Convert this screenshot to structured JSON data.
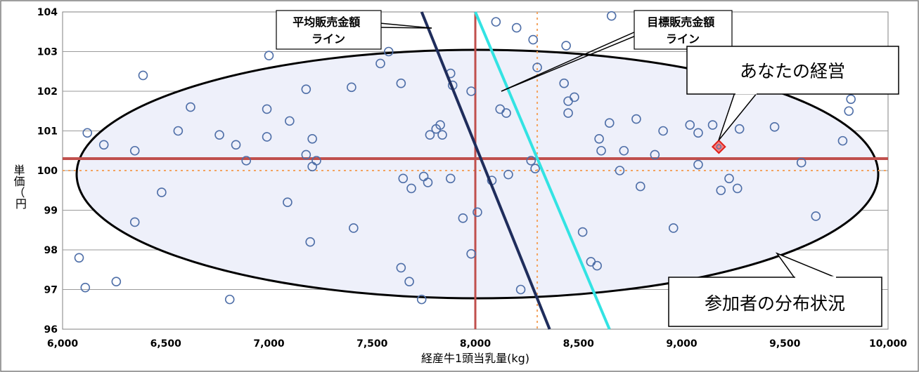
{
  "chart_data": {
    "type": "scatter",
    "title": "",
    "xlabel": "経産牛1頭当乳量(kg)",
    "ylabel": "単価（円）",
    "xlim": [
      6000,
      10000
    ],
    "ylim": [
      96,
      104
    ],
    "x_ticks": [
      "6,000",
      "6,500",
      "7,000",
      "7,500",
      "8,000",
      "8,500",
      "9,000",
      "9,500",
      "10,000"
    ],
    "y_ticks": [
      "96",
      "97",
      "98",
      "99",
      "100",
      "101",
      "102",
      "103",
      "104"
    ],
    "grid": "horizontal",
    "average_x": 8000,
    "average_y": 100.3,
    "target_x": 8300,
    "target_y": 100.0,
    "average_sales_line": {
      "label": "平均販売金額\nライン",
      "points": [
        [
          7740,
          104
        ],
        [
          8360,
          96
        ]
      ]
    },
    "target_sales_line": {
      "label": "目標販売金額\nライン",
      "points": [
        [
          8000,
          104
        ],
        [
          8650,
          96
        ]
      ]
    },
    "your_farm": {
      "label": "あなたの経営",
      "x": 9180,
      "y": 100.6
    },
    "participants": {
      "label": "参加者の分布状況",
      "points": [
        [
          6080,
          97.8
        ],
        [
          6110,
          97.05
        ],
        [
          6120,
          100.95
        ],
        [
          6200,
          100.65
        ],
        [
          6260,
          97.2
        ],
        [
          6350,
          100.5
        ],
        [
          6350,
          98.7
        ],
        [
          6390,
          102.4
        ],
        [
          6480,
          99.45
        ],
        [
          6560,
          101.0
        ],
        [
          6620,
          101.6
        ],
        [
          6760,
          100.9
        ],
        [
          6810,
          96.75
        ],
        [
          6840,
          100.65
        ],
        [
          6890,
          100.25
        ],
        [
          6990,
          101.55
        ],
        [
          6990,
          100.85
        ],
        [
          7000,
          102.9
        ],
        [
          7090,
          99.2
        ],
        [
          7100,
          101.25
        ],
        [
          7180,
          102.05
        ],
        [
          7180,
          100.4
        ],
        [
          7200,
          98.2
        ],
        [
          7210,
          100.8
        ],
        [
          7210,
          100.1
        ],
        [
          7230,
          100.25
        ],
        [
          7400,
          102.1
        ],
        [
          7410,
          98.55
        ],
        [
          7540,
          102.7
        ],
        [
          7580,
          103.0
        ],
        [
          7640,
          102.2
        ],
        [
          7640,
          97.55
        ],
        [
          7650,
          99.8
        ],
        [
          7680,
          97.2
        ],
        [
          7690,
          99.55
        ],
        [
          7740,
          96.75
        ],
        [
          7750,
          99.85
        ],
        [
          7770,
          99.7
        ],
        [
          7780,
          100.9
        ],
        [
          7810,
          101.05
        ],
        [
          7830,
          101.15
        ],
        [
          7840,
          100.9
        ],
        [
          7880,
          102.45
        ],
        [
          7880,
          99.8
        ],
        [
          7890,
          102.15
        ],
        [
          7940,
          98.8
        ],
        [
          7980,
          102.0
        ],
        [
          7980,
          97.9
        ],
        [
          8010,
          98.95
        ],
        [
          8080,
          99.75
        ],
        [
          8100,
          103.75
        ],
        [
          8120,
          101.55
        ],
        [
          8150,
          101.45
        ],
        [
          8160,
          99.9
        ],
        [
          8200,
          103.6
        ],
        [
          8220,
          97.0
        ],
        [
          8270,
          100.25
        ],
        [
          8280,
          103.3
        ],
        [
          8290,
          100.05
        ],
        [
          8300,
          102.6
        ],
        [
          8430,
          102.2
        ],
        [
          8440,
          103.15
        ],
        [
          8450,
          101.75
        ],
        [
          8450,
          101.45
        ],
        [
          8480,
          101.85
        ],
        [
          8520,
          98.45
        ],
        [
          8560,
          97.7
        ],
        [
          8590,
          97.6
        ],
        [
          8600,
          100.8
        ],
        [
          8610,
          100.5
        ],
        [
          8650,
          101.2
        ],
        [
          8660,
          103.9
        ],
        [
          8700,
          100.0
        ],
        [
          8720,
          100.5
        ],
        [
          8780,
          101.3
        ],
        [
          8800,
          99.6
        ],
        [
          8870,
          100.4
        ],
        [
          8910,
          101.0
        ],
        [
          8960,
          98.55
        ],
        [
          9040,
          101.15
        ],
        [
          9080,
          100.95
        ],
        [
          9080,
          100.15
        ],
        [
          9150,
          101.15
        ],
        [
          9190,
          99.5
        ],
        [
          9230,
          99.8
        ],
        [
          9270,
          99.55
        ],
        [
          9280,
          101.05
        ],
        [
          9450,
          101.1
        ],
        [
          9580,
          100.2
        ],
        [
          9650,
          98.85
        ],
        [
          9780,
          100.75
        ],
        [
          9810,
          101.5
        ],
        [
          9820,
          101.8
        ]
      ]
    }
  }
}
